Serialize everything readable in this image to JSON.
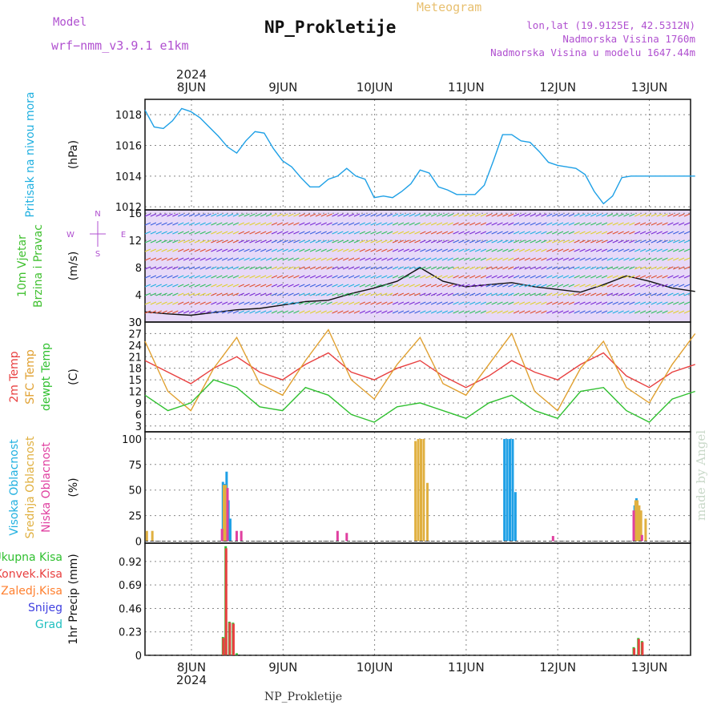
{
  "header": {
    "model_label": "Model",
    "model_name": "wrf−nmm_v3.9.1  e1km",
    "station": "NP_Prokletije",
    "meteogram": "Meteogram",
    "coords": "lon,lat (19.9125E, 42.5312N)",
    "elevation": "Nadmorska Visina 1760m",
    "elevation_model": "Nadmorska Visina u modelu 1647.44m"
  },
  "footer": {
    "station": "NP_Prokletije",
    "watermark": "made by Angel"
  },
  "chart_data": [
    {
      "type": "line",
      "panel": "pressure",
      "ylabel": "(hPa)",
      "side_labels": [
        {
          "text": "Pritisak na nivou mora",
          "color": "#20b0e0"
        }
      ],
      "ylim": [
        1011.8,
        1019
      ],
      "yticks": [
        1012,
        1014,
        1016,
        1018
      ],
      "series": [
        {
          "color": "#1ea0e6",
          "x": [
            0,
            0.1,
            0.2,
            0.3,
            0.4,
            0.5,
            0.6,
            0.7,
            0.8,
            0.9,
            1,
            1.1,
            1.2,
            1.3,
            1.4,
            1.5,
            1.6,
            1.7,
            1.8,
            1.9,
            2,
            2.1,
            2.2,
            2.3,
            2.4,
            2.5,
            2.6,
            2.7,
            2.8,
            2.9,
            3,
            3.1,
            3.2,
            3.3,
            3.4,
            3.5,
            3.6,
            3.7,
            3.8,
            3.9,
            4,
            4.1,
            4.2,
            4.3,
            4.4,
            4.5,
            4.6,
            4.7,
            4.8,
            4.9,
            5,
            5.1,
            5.2,
            5.3,
            5.4,
            5.5,
            5.6,
            5.7,
            5.8,
            5.9,
            6
          ],
          "values": [
            1018.3,
            1017.2,
            1017.1,
            1017.6,
            1018.4,
            1018.2,
            1017.8,
            1017.2,
            1016.6,
            1015.9,
            1015.5,
            1016.3,
            1016.9,
            1016.8,
            1015.8,
            1015.0,
            1014.6,
            1013.9,
            1013.3,
            1013.3,
            1013.8,
            1014.0,
            1014.5,
            1014.0,
            1013.8,
            1012.6,
            1012.7,
            1012.6,
            1013.0,
            1013.5,
            1014.4,
            1014.2,
            1013.3,
            1013.1,
            1012.8,
            1012.8,
            1012.8,
            1013.4,
            1015.0,
            1016.7,
            1016.7,
            1016.3,
            1016.2,
            1015.6,
            1014.9,
            1014.7,
            1014.6,
            1014.5,
            1014.1,
            1013.0,
            1012.2,
            1012.7,
            1013.9,
            1014.0,
            1014.0,
            1014.0,
            1014.0,
            1014.0,
            1014.0,
            1014.0,
            1014.0
          ]
        }
      ]
    },
    {
      "type": "line",
      "panel": "wind",
      "ylabel": "(m/s)",
      "side_labels": [
        {
          "text": "10m Vjetar",
          "color": "#40c030"
        },
        {
          "text": "Brzina i Pravac",
          "color": "#40c030"
        }
      ],
      "compass": [
        "N",
        "S",
        "E",
        "W"
      ],
      "ylim": [
        0,
        16.5
      ],
      "yticks": [
        0,
        4,
        8,
        12,
        16
      ],
      "series": [
        {
          "name": "speed",
          "color": "#111111",
          "x": [
            0,
            0.25,
            0.5,
            0.75,
            1,
            1.25,
            1.5,
            1.75,
            2,
            2.25,
            2.5,
            2.75,
            3,
            3.25,
            3.5,
            3.75,
            4,
            4.25,
            4.5,
            4.75,
            5,
            5.25,
            5.5,
            5.75,
            6
          ],
          "values": [
            1.5,
            1.2,
            1.0,
            1.4,
            1.8,
            2.0,
            2.5,
            3.0,
            3.2,
            4.2,
            5.0,
            6.0,
            8.0,
            6.0,
            5.2,
            5.5,
            5.8,
            5.2,
            4.8,
            4.4,
            5.5,
            6.8,
            6.0,
            5.0,
            4.5
          ]
        }
      ]
    },
    {
      "type": "line",
      "panel": "temperature",
      "ylabel": "(C)",
      "side_labels": [
        {
          "text": "2m Temp",
          "color": "#e84040"
        },
        {
          "text": "SFC Temp",
          "color": "#e0a030"
        },
        {
          "text": "dewpt Temp",
          "color": "#30c030"
        }
      ],
      "ylim": [
        1.5,
        30
      ],
      "yticks": [
        3,
        6,
        9,
        12,
        15,
        18,
        21,
        24,
        27,
        30
      ],
      "series": [
        {
          "name": "2m Temp",
          "color": "#e84040",
          "x": [
            0,
            0.25,
            0.5,
            0.75,
            1,
            1.25,
            1.5,
            1.75,
            2,
            2.25,
            2.5,
            2.75,
            3,
            3.25,
            3.5,
            3.75,
            4,
            4.25,
            4.5,
            4.75,
            5,
            5.25,
            5.5,
            5.75,
            6
          ],
          "values": [
            20,
            17,
            14,
            18,
            21,
            17,
            15,
            19,
            22,
            17,
            15,
            18,
            20,
            16,
            13,
            16,
            20,
            17,
            15,
            19,
            22,
            16,
            13,
            17,
            19
          ]
        },
        {
          "name": "SFC Temp",
          "color": "#e0a030",
          "x": [
            0,
            0.25,
            0.5,
            0.75,
            1,
            1.25,
            1.5,
            1.75,
            2,
            2.25,
            2.5,
            2.75,
            3,
            3.25,
            3.5,
            3.75,
            4,
            4.25,
            4.5,
            4.75,
            5,
            5.25,
            5.5,
            5.75,
            6
          ],
          "values": [
            25,
            12,
            7,
            18,
            26,
            14,
            11,
            20,
            28,
            15,
            10,
            19,
            26,
            14,
            11,
            19,
            27,
            12,
            7,
            18,
            25,
            13,
            9,
            19,
            27
          ]
        },
        {
          "name": "dewpt Temp",
          "color": "#30c030",
          "x": [
            0,
            0.25,
            0.5,
            0.75,
            1,
            1.25,
            1.5,
            1.75,
            2,
            2.25,
            2.5,
            2.75,
            3,
            3.25,
            3.5,
            3.75,
            4,
            4.25,
            4.5,
            4.75,
            5,
            5.25,
            5.5,
            5.75,
            6
          ],
          "values": [
            11,
            7,
            9,
            15,
            13,
            8,
            7,
            13,
            11,
            6,
            4,
            8,
            9,
            7,
            5,
            9,
            11,
            7,
            5,
            12,
            13,
            7,
            4,
            10,
            12
          ]
        }
      ]
    },
    {
      "type": "bar",
      "panel": "cloud",
      "ylabel": "(%)",
      "side_labels": [
        {
          "text": "Visoka Oblacnost",
          "color": "#20b0e0"
        },
        {
          "text": "Srednja Oblacnost",
          "color": "#e0b040"
        },
        {
          "text": "Niska Oblacnost",
          "color": "#e040a0"
        }
      ],
      "ylim": [
        -2,
        107
      ],
      "yticks": [
        0,
        25,
        50,
        75,
        100
      ],
      "series": [
        {
          "name": "Visoka Oblacnost",
          "color": "#1ea0e6",
          "x": [
            0.85,
            0.87,
            0.89,
            0.91,
            0.93,
            3.92,
            3.95,
            3.98,
            4.01,
            4.04,
            5.34,
            5.36,
            5.38
          ],
          "values": [
            58,
            56,
            68,
            40,
            22,
            100,
            100,
            100,
            100,
            48,
            35,
            42,
            30
          ]
        },
        {
          "name": "Srednja Oblacnost",
          "color": "#e0b040",
          "x": [
            0.02,
            0.08,
            2.95,
            2.98,
            3.01,
            3.04,
            3.08,
            0.86,
            0.88,
            5.35,
            5.37,
            5.39,
            5.41,
            5.46
          ],
          "values": [
            10,
            10,
            98,
            100,
            100,
            100,
            57,
            55,
            55,
            40,
            40,
            35,
            30,
            22
          ]
        },
        {
          "name": "Niska Oblacnost",
          "color": "#e040a0",
          "x": [
            0.84,
            0.9,
            1.0,
            1.05,
            2.1,
            2.2,
            4.45,
            5.33,
            5.42
          ],
          "values": [
            12,
            52,
            10,
            10,
            10,
            8,
            5,
            30,
            6
          ]
        }
      ]
    },
    {
      "type": "bar",
      "panel": "precip",
      "ylabel": "1hr Precip (mm)",
      "side_labels": [
        {
          "text": "Ukupna Kisa",
          "color": "#30c030"
        },
        {
          "text": "Konvek.Kisa",
          "color": "#e84040"
        },
        {
          "text": "Zaledj.Kisa",
          "color": "#ff8030"
        },
        {
          "text": "Snijeg",
          "color": "#4040e0"
        },
        {
          "text": "Grad",
          "color": "#20c0c0"
        }
      ],
      "ylim": [
        0,
        1.1
      ],
      "yticks": [
        0,
        0.23,
        0.46,
        0.69,
        0.92
      ],
      "xticks": [
        "8JUN",
        "9JUN",
        "10JUN",
        "11JUN",
        "12JUN",
        "13JUN"
      ],
      "year": "2024",
      "series": [
        {
          "name": "Ukupna Kisa",
          "color": "#30c030",
          "x": [
            0.85,
            0.88,
            0.92,
            0.96,
            1.0,
            5.33,
            5.38,
            5.42
          ],
          "values": [
            0.18,
            1.07,
            0.33,
            0.32,
            0.02,
            0.08,
            0.17,
            0.14
          ]
        },
        {
          "name": "Konvek.Kisa",
          "color": "#e84040",
          "x": [
            0.855,
            0.885,
            0.925,
            0.965,
            5.335,
            5.385,
            5.425
          ],
          "values": [
            0.17,
            1.05,
            0.32,
            0.31,
            0.07,
            0.16,
            0.13
          ]
        }
      ]
    }
  ]
}
